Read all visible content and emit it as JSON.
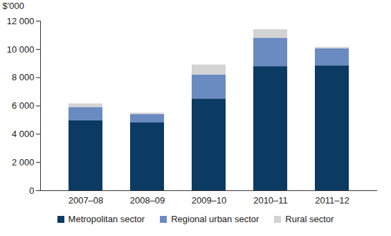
{
  "chart_data": {
    "type": "bar",
    "stacked": true,
    "y_label": "$'000",
    "categories": [
      "2007–08",
      "2008–09",
      "2009–10",
      "2010–11",
      "2011–12"
    ],
    "series": [
      {
        "name": "Metropolitan sector",
        "color": "#0b3a63",
        "values": [
          4950,
          4800,
          6500,
          8800,
          8850
        ]
      },
      {
        "name": "Regional urban sector",
        "color": "#6a8ac2",
        "values": [
          950,
          600,
          1700,
          2000,
          1200
        ]
      },
      {
        "name": "Rural sector",
        "color": "#d3d3d3",
        "values": [
          250,
          100,
          700,
          600,
          100
        ]
      }
    ],
    "ylim": [
      0,
      12000
    ],
    "yticks": [
      0,
      {
        "value": 2000,
        "label": "2 000"
      },
      {
        "value": 4000,
        "label": "4 000"
      },
      {
        "value": 6000,
        "label": "6 000"
      },
      {
        "value": 8000,
        "label": "8 000"
      },
      {
        "value": 10000,
        "label": "10 000"
      },
      {
        "value": 12000,
        "label": "12 000"
      }
    ],
    "grid": false,
    "legend": "bottom"
  }
}
